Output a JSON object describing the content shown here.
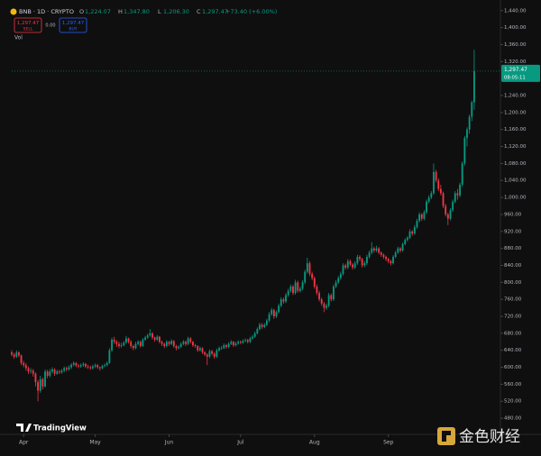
{
  "header": {
    "symbol": "BNB · 1D · CRYPTO",
    "ohlc": [
      {
        "label": "O",
        "value": "1,224.07"
      },
      {
        "label": "H",
        "value": "1,347.80"
      },
      {
        "label": "L",
        "value": "1,206.30"
      },
      {
        "label": "C",
        "value": "1,297.47"
      }
    ],
    "change": "+73.40 (+6.00%)",
    "sell_price": "1,297.47",
    "sell_label": "SELL",
    "spread": "0.00",
    "buy_price": "1,297.47",
    "buy_label": "BUY",
    "volume_label": "Vol"
  },
  "chart_data": {
    "type": "candlestick",
    "up_color": "#089981",
    "down_color": "#f23645",
    "ylim": [
      442,
      1465
    ],
    "xlim": [
      0,
      205
    ],
    "yticks": [
      {
        "value": 480,
        "label": "480.00"
      },
      {
        "value": 520,
        "label": "520.00"
      },
      {
        "value": 560,
        "label": "560.00"
      },
      {
        "value": 600,
        "label": "600.00"
      },
      {
        "value": 640,
        "label": "640.00"
      },
      {
        "value": 680,
        "label": "680.00"
      },
      {
        "value": 720,
        "label": "720.00"
      },
      {
        "value": 760,
        "label": "760.00"
      },
      {
        "value": 800,
        "label": "800.00"
      },
      {
        "value": 840,
        "label": "840.00"
      },
      {
        "value": 880,
        "label": "880.00"
      },
      {
        "value": 920,
        "label": "920.00"
      },
      {
        "value": 960,
        "label": "960.00"
      },
      {
        "value": 1000,
        "label": "1,000.00"
      },
      {
        "value": 1040,
        "label": "1,040.00"
      },
      {
        "value": 1080,
        "label": "1,080.00"
      },
      {
        "value": 1120,
        "label": "1,120.00"
      },
      {
        "value": 1160,
        "label": "1,160.00"
      },
      {
        "value": 1200,
        "label": "1,200.00"
      },
      {
        "value": 1240,
        "label": "1,240.00"
      },
      {
        "value": 1320,
        "label": "1,320.00"
      },
      {
        "value": 1360,
        "label": "1,360.00"
      },
      {
        "value": 1400,
        "label": "1,400.00"
      },
      {
        "value": 1440,
        "label": "1,440.00"
      }
    ],
    "xticks": [
      {
        "value": 5,
        "label": "Apr"
      },
      {
        "value": 35,
        "label": "May"
      },
      {
        "value": 66,
        "label": "Jun"
      },
      {
        "value": 96,
        "label": "Jul"
      },
      {
        "value": 127,
        "label": "Aug"
      },
      {
        "value": 158,
        "label": "Sep"
      }
    ],
    "last_price_label": "1,297.47",
    "countdown": "08:05:11",
    "candles": [
      [
        635,
        640,
        626,
        630
      ],
      [
        630,
        634,
        620,
        625
      ],
      [
        625,
        640,
        622,
        635
      ],
      [
        635,
        638,
        624,
        628
      ],
      [
        628,
        630,
        605,
        610
      ],
      [
        610,
        615,
        600,
        605
      ],
      [
        605,
        610,
        592,
        598
      ],
      [
        598,
        602,
        584,
        590
      ],
      [
        590,
        598,
        585,
        592
      ],
      [
        592,
        596,
        578,
        585
      ],
      [
        585,
        588,
        555,
        565
      ],
      [
        565,
        570,
        520,
        545
      ],
      [
        545,
        580,
        540,
        572
      ],
      [
        572,
        576,
        548,
        555
      ],
      [
        555,
        595,
        552,
        590
      ],
      [
        590,
        594,
        574,
        580
      ],
      [
        580,
        596,
        576,
        590
      ],
      [
        590,
        600,
        586,
        595
      ],
      [
        595,
        598,
        580,
        585
      ],
      [
        585,
        594,
        582,
        590
      ],
      [
        590,
        594,
        584,
        588
      ],
      [
        588,
        596,
        585,
        592
      ],
      [
        592,
        602,
        588,
        598
      ],
      [
        598,
        602,
        590,
        595
      ],
      [
        595,
        605,
        592,
        600
      ],
      [
        600,
        610,
        596,
        606
      ],
      [
        606,
        614,
        602,
        610
      ],
      [
        610,
        612,
        600,
        604
      ],
      [
        604,
        608,
        598,
        602
      ],
      [
        602,
        609,
        599,
        605
      ],
      [
        605,
        612,
        601,
        608
      ],
      [
        608,
        610,
        598,
        602
      ],
      [
        602,
        606,
        596,
        600
      ],
      [
        600,
        604,
        594,
        598
      ],
      [
        598,
        606,
        595,
        602
      ],
      [
        602,
        609,
        598,
        605
      ],
      [
        605,
        608,
        596,
        600
      ],
      [
        600,
        602,
        592,
        598
      ],
      [
        598,
        606,
        595,
        603
      ],
      [
        603,
        609,
        600,
        605
      ],
      [
        605,
        614,
        602,
        610
      ],
      [
        610,
        645,
        608,
        640
      ],
      [
        640,
        670,
        636,
        665
      ],
      [
        665,
        672,
        655,
        660
      ],
      [
        660,
        664,
        648,
        655
      ],
      [
        655,
        660,
        645,
        650
      ],
      [
        650,
        658,
        646,
        652
      ],
      [
        652,
        662,
        649,
        658
      ],
      [
        658,
        674,
        655,
        668
      ],
      [
        668,
        670,
        656,
        660
      ],
      [
        660,
        664,
        645,
        650
      ],
      [
        650,
        653,
        640,
        645
      ],
      [
        645,
        660,
        642,
        655
      ],
      [
        655,
        664,
        652,
        660
      ],
      [
        660,
        663,
        646,
        650
      ],
      [
        650,
        669,
        648,
        665
      ],
      [
        665,
        674,
        662,
        670
      ],
      [
        670,
        679,
        667,
        675
      ],
      [
        675,
        690,
        672,
        680
      ],
      [
        680,
        683,
        666,
        670
      ],
      [
        670,
        672,
        660,
        665
      ],
      [
        665,
        676,
        662,
        672
      ],
      [
        672,
        674,
        656,
        660
      ],
      [
        660,
        663,
        650,
        655
      ],
      [
        655,
        658,
        645,
        650
      ],
      [
        650,
        664,
        647,
        660
      ],
      [
        660,
        662,
        650,
        655
      ],
      [
        655,
        666,
        652,
        662
      ],
      [
        662,
        664,
        646,
        650
      ],
      [
        650,
        653,
        640,
        645
      ],
      [
        645,
        652,
        642,
        648
      ],
      [
        648,
        659,
        645,
        655
      ],
      [
        655,
        664,
        652,
        660
      ],
      [
        660,
        663,
        650,
        655
      ],
      [
        655,
        672,
        652,
        668
      ],
      [
        668,
        671,
        656,
        660
      ],
      [
        660,
        662,
        648,
        652
      ],
      [
        652,
        655,
        646,
        650
      ],
      [
        650,
        652,
        636,
        640
      ],
      [
        640,
        649,
        637,
        645
      ],
      [
        645,
        647,
        631,
        635
      ],
      [
        635,
        638,
        626,
        630
      ],
      [
        630,
        633,
        605,
        625
      ],
      [
        625,
        642,
        622,
        638
      ],
      [
        638,
        641,
        628,
        632
      ],
      [
        632,
        635,
        620,
        625
      ],
      [
        625,
        644,
        622,
        640
      ],
      [
        640,
        649,
        637,
        645
      ],
      [
        645,
        650,
        641,
        645
      ],
      [
        645,
        656,
        643,
        652
      ],
      [
        652,
        655,
        644,
        648
      ],
      [
        648,
        659,
        645,
        655
      ],
      [
        655,
        664,
        652,
        660
      ],
      [
        660,
        662,
        648,
        652
      ],
      [
        652,
        660,
        649,
        656
      ],
      [
        656,
        664,
        653,
        660
      ],
      [
        660,
        663,
        654,
        658
      ],
      [
        658,
        666,
        655,
        662
      ],
      [
        662,
        668,
        659,
        664
      ],
      [
        664,
        667,
        656,
        660
      ],
      [
        660,
        672,
        657,
        668
      ],
      [
        668,
        676,
        665,
        672
      ],
      [
        672,
        684,
        669,
        680
      ],
      [
        680,
        694,
        677,
        690
      ],
      [
        690,
        705,
        687,
        700
      ],
      [
        700,
        704,
        690,
        695
      ],
      [
        695,
        704,
        692,
        700
      ],
      [
        700,
        714,
        697,
        710
      ],
      [
        710,
        730,
        706,
        725
      ],
      [
        725,
        740,
        721,
        735
      ],
      [
        735,
        738,
        714,
        720
      ],
      [
        720,
        734,
        716,
        730
      ],
      [
        730,
        750,
        727,
        745
      ],
      [
        745,
        765,
        741,
        760
      ],
      [
        760,
        764,
        750,
        755
      ],
      [
        755,
        775,
        751,
        770
      ],
      [
        770,
        785,
        766,
        780
      ],
      [
        780,
        795,
        776,
        790
      ],
      [
        790,
        794,
        770,
        775
      ],
      [
        775,
        806,
        771,
        800
      ],
      [
        800,
        804,
        776,
        780
      ],
      [
        780,
        790,
        776,
        785
      ],
      [
        785,
        805,
        781,
        800
      ],
      [
        800,
        830,
        796,
        825
      ],
      [
        825,
        858,
        821,
        845
      ],
      [
        845,
        850,
        815,
        820
      ],
      [
        820,
        825,
        805,
        810
      ],
      [
        810,
        814,
        785,
        790
      ],
      [
        790,
        795,
        770,
        775
      ],
      [
        775,
        780,
        755,
        760
      ],
      [
        760,
        764,
        745,
        750
      ],
      [
        750,
        754,
        730,
        740
      ],
      [
        740,
        750,
        735,
        745
      ],
      [
        745,
        775,
        741,
        770
      ],
      [
        770,
        774,
        755,
        760
      ],
      [
        760,
        795,
        756,
        790
      ],
      [
        790,
        805,
        786,
        800
      ],
      [
        800,
        815,
        796,
        810
      ],
      [
        810,
        825,
        806,
        820
      ],
      [
        820,
        845,
        816,
        840
      ],
      [
        840,
        844,
        830,
        835
      ],
      [
        835,
        855,
        831,
        850
      ],
      [
        850,
        854,
        838,
        842
      ],
      [
        842,
        846,
        830,
        835
      ],
      [
        835,
        850,
        831,
        845
      ],
      [
        845,
        865,
        841,
        860
      ],
      [
        860,
        864,
        850,
        855
      ],
      [
        855,
        858,
        835,
        840
      ],
      [
        840,
        850,
        836,
        845
      ],
      [
        845,
        865,
        841,
        860
      ],
      [
        860,
        875,
        856,
        870
      ],
      [
        870,
        895,
        866,
        880
      ],
      [
        880,
        884,
        870,
        875
      ],
      [
        875,
        886,
        871,
        880
      ],
      [
        880,
        883,
        866,
        870
      ],
      [
        870,
        873,
        860,
        865
      ],
      [
        865,
        868,
        855,
        860
      ],
      [
        860,
        863,
        850,
        855
      ],
      [
        855,
        858,
        845,
        850
      ],
      [
        850,
        853,
        840,
        845
      ],
      [
        845,
        864,
        842,
        860
      ],
      [
        860,
        874,
        857,
        870
      ],
      [
        870,
        884,
        867,
        880
      ],
      [
        880,
        883,
        870,
        875
      ],
      [
        875,
        894,
        872,
        890
      ],
      [
        890,
        904,
        887,
        900
      ],
      [
        900,
        909,
        896,
        905
      ],
      [
        905,
        925,
        902,
        920
      ],
      [
        920,
        923,
        910,
        915
      ],
      [
        915,
        935,
        912,
        930
      ],
      [
        930,
        950,
        926,
        945
      ],
      [
        945,
        965,
        941,
        960
      ],
      [
        960,
        963,
        945,
        950
      ],
      [
        950,
        970,
        946,
        965
      ],
      [
        965,
        995,
        961,
        990
      ],
      [
        990,
        1005,
        986,
        1000
      ],
      [
        1000,
        1015,
        996,
        1010
      ],
      [
        1010,
        1080,
        1006,
        1060
      ],
      [
        1060,
        1065,
        1035,
        1040
      ],
      [
        1040,
        1045,
        1015,
        1020
      ],
      [
        1020,
        1030,
        1005,
        1010
      ],
      [
        1010,
        1014,
        975,
        980
      ],
      [
        980,
        985,
        955,
        960
      ],
      [
        960,
        964,
        935,
        950
      ],
      [
        950,
        975,
        946,
        970
      ],
      [
        970,
        995,
        966,
        990
      ],
      [
        990,
        1015,
        986,
        1010
      ],
      [
        1010,
        1020,
        995,
        1005
      ],
      [
        1005,
        1035,
        1000,
        1030
      ],
      [
        1030,
        1085,
        1025,
        1080
      ],
      [
        1080,
        1145,
        1075,
        1140
      ],
      [
        1140,
        1165,
        1120,
        1160
      ],
      [
        1160,
        1195,
        1150,
        1190
      ],
      [
        1190,
        1228,
        1180,
        1224.07
      ],
      [
        1224.07,
        1347.8,
        1206.3,
        1297.47
      ]
    ]
  },
  "brand": "TradingView",
  "watermark": "金色财经"
}
